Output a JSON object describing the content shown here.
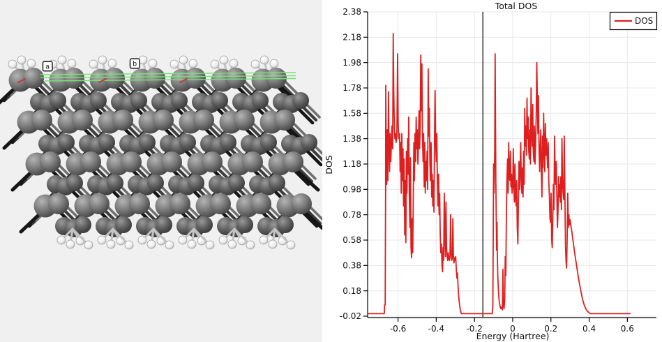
{
  "app": {
    "background": "#f0f0f0",
    "panel_background": "#ffffff"
  },
  "structure": {
    "description": "hydrogen-terminated crystal slab model",
    "rows": 8,
    "columns": 7,
    "axis_labels": {
      "a": "a",
      "b": "b"
    },
    "colors": {
      "background": "#f0f0f0",
      "atom_front": "#787878",
      "atom_back": "#5f5f5f",
      "hydrogen": "#fafafa",
      "hydrogen_edge": "#9e9e9e",
      "bond_dark": "#161616",
      "bond_mid": "#3d3d3d",
      "bond_light": "#6f6f6f",
      "bond_hydrogen": "#c4c4c4",
      "cell_edge": "#74e274",
      "origin_mark": "#c03a3a"
    }
  },
  "chart_data": {
    "type": "line",
    "title": "Total DOS",
    "xlabel": "Energy (Hartree)",
    "ylabel": "DOS",
    "legend": [
      "DOS"
    ],
    "legend_position": "upper right",
    "line_color": "#df1f1f",
    "grid_color": "#e7e7e7",
    "axis_color": "#000000",
    "fermi_color": "#000000",
    "background": "#ffffff",
    "grid": true,
    "fermi_line_x": -0.156,
    "xlim": [
      -0.759,
      0.752
    ],
    "ylim": [
      -0.031,
      2.38
    ],
    "xticks": [
      -0.6,
      -0.4,
      -0.2,
      0,
      0.2,
      0.4,
      0.6
    ],
    "xtick_labels": [
      "-0.6",
      "-0.4",
      "-0.2",
      "0",
      "0.2",
      "0.4",
      "0.6"
    ],
    "yticks": [
      -0.02,
      0.18,
      0.38,
      0.58,
      0.78,
      0.98,
      1.18,
      1.38,
      1.58,
      1.78,
      1.98,
      2.18,
      2.38
    ],
    "ytick_labels": [
      "-0.02",
      "0.18",
      "0.38",
      "0.58",
      "0.78",
      "0.98",
      "1.18",
      "1.38",
      "1.58",
      "1.78",
      "1.98",
      "2.18",
      "2.38"
    ],
    "points": [
      [
        -0.759,
        0
      ],
      [
        -0.72,
        0
      ],
      [
        -0.7,
        0
      ],
      [
        -0.672,
        0
      ],
      [
        -0.67,
        0.07
      ],
      [
        -0.667,
        0.07
      ],
      [
        -0.666,
        0.55
      ],
      [
        -0.665,
        1.0
      ],
      [
        -0.664,
        1.8
      ],
      [
        -0.662,
        1.28
      ],
      [
        -0.659,
        1.02
      ],
      [
        -0.656,
        1.45
      ],
      [
        -0.653,
        1.05
      ],
      [
        -0.65,
        1.75
      ],
      [
        -0.647,
        1.3
      ],
      [
        -0.644,
        1.12
      ],
      [
        -0.641,
        1.42
      ],
      [
        -0.638,
        1.2
      ],
      [
        -0.635,
        1.32
      ],
      [
        -0.632,
        1.48
      ],
      [
        -0.628,
        1.3
      ],
      [
        -0.625,
        2.21
      ],
      [
        -0.622,
        1.75
      ],
      [
        -0.619,
        1.45
      ],
      [
        -0.616,
        1.38
      ],
      [
        -0.613,
        1.42
      ],
      [
        -0.61,
        1.35
      ],
      [
        -0.606,
        1.4
      ],
      [
        -0.602,
        2.05
      ],
      [
        -0.599,
        1.5
      ],
      [
        -0.596,
        1.38
      ],
      [
        -0.592,
        1.42
      ],
      [
        -0.589,
        1.12
      ],
      [
        -0.586,
        1.35
      ],
      [
        -0.583,
        0.95
      ],
      [
        -0.58,
        1.42
      ],
      [
        -0.577,
        1.05
      ],
      [
        -0.574,
        1.3
      ],
      [
        -0.571,
        0.85
      ],
      [
        -0.568,
        1.22
      ],
      [
        -0.565,
        0.62
      ],
      [
        -0.562,
        1.05
      ],
      [
        -0.559,
        0.56
      ],
      [
        -0.556,
        1.28
      ],
      [
        -0.553,
        0.95
      ],
      [
        -0.55,
        1.38
      ],
      [
        -0.547,
        1.1
      ],
      [
        -0.544,
        1.55
      ],
      [
        -0.541,
        0.95
      ],
      [
        -0.538,
        0.68
      ],
      [
        -0.535,
        1.23
      ],
      [
        -0.532,
        0.52
      ],
      [
        -0.529,
        0.44
      ],
      [
        -0.526,
        0.75
      ],
      [
        -0.523,
        0.48
      ],
      [
        -0.52,
        0.95
      ],
      [
        -0.517,
        1.35
      ],
      [
        -0.514,
        1.05
      ],
      [
        -0.511,
        1.42
      ],
      [
        -0.508,
        1.2
      ],
      [
        -0.505,
        1.55
      ],
      [
        -0.502,
        1.3
      ],
      [
        -0.499,
        1.45
      ],
      [
        -0.496,
        1.18
      ],
      [
        -0.493,
        1.35
      ],
      [
        -0.49,
        1.6
      ],
      [
        -0.487,
        1.3
      ],
      [
        -0.484,
        1.45
      ],
      [
        -0.481,
        2.04
      ],
      [
        -0.478,
        1.6
      ],
      [
        -0.475,
        1.97
      ],
      [
        -0.472,
        1.4
      ],
      [
        -0.469,
        1.2
      ],
      [
        -0.466,
        1.42
      ],
      [
        -0.463,
        1.0
      ],
      [
        -0.46,
        1.35
      ],
      [
        -0.457,
        0.95
      ],
      [
        -0.454,
        1.2
      ],
      [
        -0.451,
        1.05
      ],
      [
        -0.448,
        1.28
      ],
      [
        -0.445,
        0.98
      ],
      [
        -0.442,
        1.93
      ],
      [
        -0.439,
        1.4
      ],
      [
        -0.436,
        1.62
      ],
      [
        -0.433,
        1.2
      ],
      [
        -0.43,
        1.05
      ],
      [
        -0.427,
        1.35
      ],
      [
        -0.424,
        0.92
      ],
      [
        -0.421,
        1.1
      ],
      [
        -0.418,
        0.85
      ],
      [
        -0.415,
        1.05
      ],
      [
        -0.412,
        0.8
      ],
      [
        -0.409,
        1.4
      ],
      [
        -0.406,
        1.76
      ],
      [
        -0.403,
        1.35
      ],
      [
        -0.4,
        1.2
      ],
      [
        -0.397,
        1.42
      ],
      [
        -0.394,
        1.05
      ],
      [
        -0.391,
        0.85
      ],
      [
        -0.388,
        1.1
      ],
      [
        -0.385,
        0.78
      ],
      [
        -0.382,
        0.95
      ],
      [
        -0.379,
        0.62
      ],
      [
        -0.376,
        0.48
      ],
      [
        -0.373,
        0.55
      ],
      [
        -0.37,
        0.38
      ],
      [
        -0.367,
        0.33
      ],
      [
        -0.364,
        0.52
      ],
      [
        -0.361,
        0.42
      ],
      [
        -0.358,
        0.95
      ],
      [
        -0.355,
        0.62
      ],
      [
        -0.352,
        0.45
      ],
      [
        -0.349,
        0.88
      ],
      [
        -0.346,
        0.52
      ],
      [
        -0.343,
        0.45
      ],
      [
        -0.34,
        0.42
      ],
      [
        -0.337,
        0.48
      ],
      [
        -0.334,
        0.44
      ],
      [
        -0.331,
        0.42
      ],
      [
        -0.328,
        0.45
      ],
      [
        -0.325,
        0.78
      ],
      [
        -0.322,
        0.48
      ],
      [
        -0.319,
        0.42
      ],
      [
        -0.316,
        0.44
      ],
      [
        -0.313,
        0.75
      ],
      [
        -0.31,
        0.45
      ],
      [
        -0.307,
        0.4
      ],
      [
        -0.304,
        0.44
      ],
      [
        -0.301,
        0.42
      ],
      [
        -0.298,
        0.45
      ],
      [
        -0.295,
        0.35
      ],
      [
        -0.292,
        0.28
      ],
      [
        -0.289,
        0.32
      ],
      [
        -0.286,
        0.22
      ],
      [
        -0.283,
        0.15
      ],
      [
        -0.28,
        0.1
      ],
      [
        -0.277,
        0.06
      ],
      [
        -0.274,
        0.03
      ],
      [
        -0.271,
        0.01
      ],
      [
        -0.268,
        0
      ],
      [
        -0.24,
        0
      ],
      [
        -0.2,
        0
      ],
      [
        -0.156,
        0
      ],
      [
        -0.12,
        0
      ],
      [
        -0.107,
        0
      ],
      [
        -0.104,
        0.05
      ],
      [
        -0.102,
        0.55
      ],
      [
        -0.1,
        1.18
      ],
      [
        -0.098,
        0.95
      ],
      [
        -0.096,
        1.1
      ],
      [
        -0.094,
        1.3
      ],
      [
        -0.092,
        2.05
      ],
      [
        -0.09,
        1.55
      ],
      [
        -0.088,
        1.05
      ],
      [
        -0.086,
        0.75
      ],
      [
        -0.084,
        0.5
      ],
      [
        -0.082,
        0.72
      ],
      [
        -0.08,
        0.45
      ],
      [
        -0.078,
        0.3
      ],
      [
        -0.075,
        0.2
      ],
      [
        -0.072,
        0.12
      ],
      [
        -0.069,
        0.08
      ],
      [
        -0.066,
        0.06
      ],
      [
        -0.063,
        0.04
      ],
      [
        -0.06,
        0.05
      ],
      [
        -0.057,
        0.04
      ],
      [
        -0.054,
        0.03
      ],
      [
        -0.051,
        0.35
      ],
      [
        -0.048,
        0.06
      ],
      [
        -0.045,
        0.04
      ],
      [
        -0.042,
        0.1
      ],
      [
        -0.039,
        0.45
      ],
      [
        -0.036,
        0.3
      ],
      [
        -0.033,
        0.75
      ],
      [
        -0.03,
        1.05
      ],
      [
        -0.027,
        1.22
      ],
      [
        -0.024,
        0.95
      ],
      [
        -0.021,
        1.35
      ],
      [
        -0.018,
        1.1
      ],
      [
        -0.015,
        1.05
      ],
      [
        -0.012,
        1.28
      ],
      [
        -0.009,
        1.0
      ],
      [
        -0.006,
        1.1
      ],
      [
        -0.003,
        0.95
      ],
      [
        0.0,
        1.0
      ],
      [
        0.003,
        1.3
      ],
      [
        0.006,
        1.02
      ],
      [
        0.009,
        0.88
      ],
      [
        0.012,
        1.18
      ],
      [
        0.015,
        0.92
      ],
      [
        0.018,
        0.85
      ],
      [
        0.021,
        1.05
      ],
      [
        0.024,
        0.68
      ],
      [
        0.027,
        0.55
      ],
      [
        0.03,
        0.9
      ],
      [
        0.033,
        1.2
      ],
      [
        0.036,
        0.98
      ],
      [
        0.039,
        1.12
      ],
      [
        0.042,
        1.35
      ],
      [
        0.045,
        1.02
      ],
      [
        0.048,
        0.95
      ],
      [
        0.051,
        1.15
      ],
      [
        0.054,
        0.92
      ],
      [
        0.057,
        1.28
      ],
      [
        0.06,
        1.02
      ],
      [
        0.063,
        1.62
      ],
      [
        0.066,
        1.32
      ],
      [
        0.069,
        1.48
      ],
      [
        0.072,
        1.25
      ],
      [
        0.075,
        1.7
      ],
      [
        0.078,
        1.38
      ],
      [
        0.081,
        1.55
      ],
      [
        0.084,
        1.28
      ],
      [
        0.087,
        1.22
      ],
      [
        0.09,
        1.45
      ],
      [
        0.093,
        1.18
      ],
      [
        0.096,
        1.78
      ],
      [
        0.099,
        1.42
      ],
      [
        0.102,
        1.32
      ],
      [
        0.105,
        1.65
      ],
      [
        0.108,
        1.28
      ],
      [
        0.111,
        1.2
      ],
      [
        0.114,
        1.48
      ],
      [
        0.117,
        1.18
      ],
      [
        0.12,
        1.32
      ],
      [
        0.123,
        1.58
      ],
      [
        0.126,
        1.98
      ],
      [
        0.129,
        1.7
      ],
      [
        0.132,
        1.42
      ],
      [
        0.135,
        1.72
      ],
      [
        0.138,
        1.28
      ],
      [
        0.141,
        1.12
      ],
      [
        0.144,
        1.3
      ],
      [
        0.147,
        1.45
      ],
      [
        0.15,
        1.1
      ],
      [
        0.153,
        0.92
      ],
      [
        0.156,
        1.4
      ],
      [
        0.159,
        1.15
      ],
      [
        0.162,
        1.58
      ],
      [
        0.165,
        1.28
      ],
      [
        0.168,
        1.12
      ],
      [
        0.171,
        1.5
      ],
      [
        0.174,
        1.25
      ],
      [
        0.177,
        1.38
      ],
      [
        0.18,
        1.25
      ],
      [
        0.183,
        1.15
      ],
      [
        0.186,
        1.35
      ],
      [
        0.189,
        1.05
      ],
      [
        0.192,
        0.92
      ],
      [
        0.195,
        0.75
      ],
      [
        0.198,
        0.72
      ],
      [
        0.201,
        0.95
      ],
      [
        0.204,
        0.58
      ],
      [
        0.207,
        0.52
      ],
      [
        0.21,
        0.75
      ],
      [
        0.213,
        1.02
      ],
      [
        0.216,
        0.82
      ],
      [
        0.219,
        1.4
      ],
      [
        0.222,
        1.1
      ],
      [
        0.225,
        1.02
      ],
      [
        0.228,
        1.2
      ],
      [
        0.231,
        0.92
      ],
      [
        0.234,
        0.68
      ],
      [
        0.237,
        0.8
      ],
      [
        0.24,
        1.08
      ],
      [
        0.243,
        0.92
      ],
      [
        0.246,
        1.02
      ],
      [
        0.249,
        0.88
      ],
      [
        0.252,
        1.08
      ],
      [
        0.255,
        0.82
      ],
      [
        0.258,
        1.38
      ],
      [
        0.261,
        1.02
      ],
      [
        0.264,
        0.95
      ],
      [
        0.267,
        0.9
      ],
      [
        0.27,
        1.4
      ],
      [
        0.273,
        0.95
      ],
      [
        0.276,
        0.55
      ],
      [
        0.279,
        0.42
      ],
      [
        0.282,
        0.36
      ],
      [
        0.285,
        0.58
      ],
      [
        0.288,
        0.95
      ],
      [
        0.291,
        0.68
      ],
      [
        0.294,
        0.78
      ],
      [
        0.297,
        0.7
      ],
      [
        0.3,
        0.74
      ],
      [
        0.305,
        0.69
      ],
      [
        0.31,
        0.64
      ],
      [
        0.318,
        0.55
      ],
      [
        0.326,
        0.46
      ],
      [
        0.334,
        0.38
      ],
      [
        0.342,
        0.3
      ],
      [
        0.35,
        0.23
      ],
      [
        0.358,
        0.17
      ],
      [
        0.366,
        0.11
      ],
      [
        0.374,
        0.07
      ],
      [
        0.382,
        0.04
      ],
      [
        0.39,
        0.02
      ],
      [
        0.398,
        0.01
      ],
      [
        0.405,
        0
      ],
      [
        0.45,
        0
      ],
      [
        0.5,
        0
      ],
      [
        0.55,
        0
      ],
      [
        0.6,
        0
      ],
      [
        0.614,
        0
      ]
    ]
  }
}
